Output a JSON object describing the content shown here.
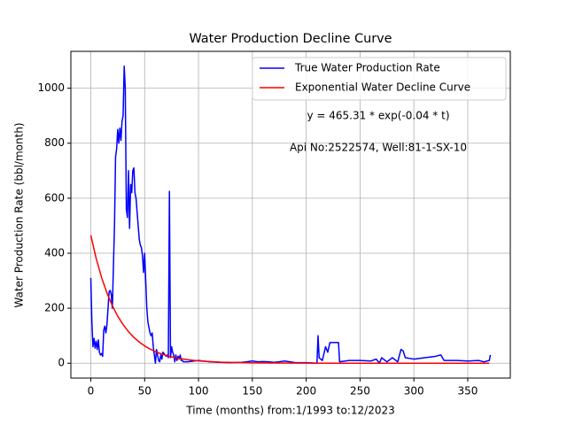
{
  "chart_data": {
    "type": "line",
    "title": "Water Production Decline Curve",
    "xlabel": "Time (months) from:1/1993 to:12/2023",
    "ylabel": "Water Production Rate (bbl/month)",
    "annotations": [
      "y = 465.31 * exp(-0.04 * t)",
      "Api No:2522574, Well:81-1-SX-10"
    ],
    "xlim": [
      -18.5,
      389.5
    ],
    "ylim": [
      -54,
      1134
    ],
    "xticks": [
      0,
      50,
      100,
      150,
      200,
      250,
      300,
      350
    ],
    "yticks": [
      0,
      200,
      400,
      600,
      800,
      1000
    ],
    "grid": true,
    "legend": "upper right",
    "series": [
      {
        "name": "True Water Production Rate",
        "color": "#0000ff",
        "x": [
          0,
          1,
          2,
          3,
          4,
          5,
          6,
          7,
          8,
          9,
          10,
          11,
          12,
          13,
          14,
          15,
          16,
          17,
          18,
          19,
          20,
          21,
          22,
          23,
          24,
          25,
          26,
          27,
          28,
          29,
          30,
          31,
          32,
          33,
          34,
          35,
          36,
          37,
          38,
          39,
          40,
          41,
          42,
          43,
          44,
          45,
          46,
          47,
          48,
          49,
          50,
          51,
          52,
          53,
          54,
          55,
          56,
          57,
          58,
          59,
          60,
          61,
          62,
          63,
          64,
          65,
          66,
          67,
          68,
          69,
          70,
          71,
          72,
          73,
          74,
          75,
          76,
          77,
          78,
          79,
          80,
          81,
          82,
          83,
          84,
          85,
          86,
          90,
          100,
          110,
          120,
          130,
          140,
          145,
          150,
          155,
          160,
          165,
          170,
          175,
          180,
          190,
          200,
          205,
          210,
          211,
          212,
          215,
          218,
          220,
          222,
          230,
          231,
          240,
          250,
          260,
          265,
          268,
          270,
          275,
          280,
          285,
          288,
          290,
          292,
          300,
          310,
          320,
          325,
          328,
          340,
          350,
          360,
          365,
          370,
          371
        ],
        "values": [
          310,
          150,
          60,
          90,
          55,
          80,
          50,
          85,
          40,
          30,
          35,
          25,
          120,
          135,
          110,
          140,
          200,
          260,
          265,
          250,
          200,
          350,
          500,
          750,
          780,
          850,
          800,
          855,
          810,
          880,
          900,
          1080,
          1000,
          560,
          530,
          700,
          490,
          650,
          620,
          700,
          710,
          620,
          600,
          550,
          500,
          450,
          430,
          420,
          390,
          330,
          400,
          300,
          200,
          150,
          130,
          110,
          100,
          110,
          60,
          30,
          0,
          50,
          30,
          10,
          5,
          30,
          15,
          40,
          35,
          30,
          25,
          30,
          20,
          625,
          20,
          60,
          40,
          30,
          5,
          30,
          10,
          25,
          15,
          30,
          10,
          10,
          5,
          5,
          10,
          5,
          3,
          2,
          3,
          5,
          8,
          5,
          6,
          5,
          3,
          5,
          8,
          2,
          2,
          1,
          0,
          100,
          20,
          10,
          60,
          40,
          75,
          75,
          5,
          10,
          10,
          8,
          15,
          0,
          20,
          5,
          20,
          5,
          50,
          45,
          20,
          15,
          20,
          25,
          30,
          10,
          10,
          8,
          10,
          5,
          10,
          30
        ]
      },
      {
        "name": "Exponential Water Decline Curve",
        "color": "#ff0000",
        "x": [
          0,
          5,
          10,
          15,
          20,
          25,
          30,
          35,
          40,
          45,
          50,
          55,
          60,
          65,
          70,
          75,
          80,
          90,
          100,
          120,
          150,
          200,
          250,
          300,
          370
        ],
        "values": [
          465.31,
          380.96,
          311.91,
          255.37,
          209.08,
          171.18,
          140.15,
          114.74,
          93.95,
          76.92,
          62.97,
          51.56,
          42.21,
          34.56,
          28.3,
          23.17,
          18.97,
          12.71,
          8.52,
          3.83,
          1.15,
          0.16,
          0.02,
          0,
          0
        ]
      }
    ]
  }
}
